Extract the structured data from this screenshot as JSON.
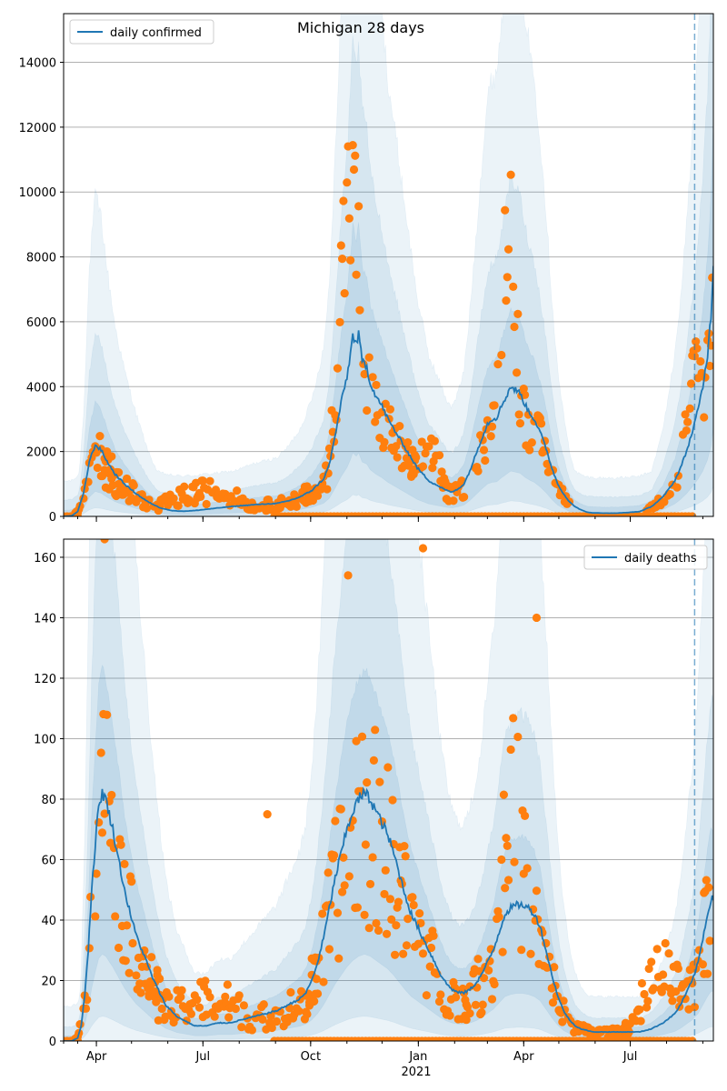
{
  "figure": {
    "title": "Michigan 28 days",
    "year_label": "2021",
    "x_ticks": [
      {
        "label": "Apr",
        "day": 16
      },
      {
        "label": "Jul",
        "day": 107
      },
      {
        "label": "Oct",
        "day": 199
      },
      {
        "label": "Jan",
        "day": 291
      },
      {
        "label": "Apr",
        "day": 381
      },
      {
        "label": "Jul",
        "day": 472
      }
    ],
    "x_range": [
      -12,
      543
    ],
    "forecast_day": 527
  },
  "colors": {
    "line": "#1f77b4",
    "points": "#ff7f0e",
    "band": "#1f77b4",
    "grid": "#b0b0b0"
  },
  "chart_data": [
    {
      "type": "line",
      "name": "confirmed",
      "legend": "daily confirmed",
      "legend_position": "top-left",
      "ylim": [
        0,
        15500
      ],
      "y_ticks": [
        0,
        2000,
        4000,
        6000,
        8000,
        10000,
        12000,
        14000
      ],
      "grid": true,
      "x_start": -12,
      "line_knots": [
        [
          -12,
          0
        ],
        [
          -5,
          20
        ],
        [
          0,
          150
        ],
        [
          5,
          700
        ],
        [
          10,
          1700
        ],
        [
          15,
          2200
        ],
        [
          20,
          2050
        ],
        [
          25,
          1700
        ],
        [
          32,
          1300
        ],
        [
          40,
          1000
        ],
        [
          50,
          700
        ],
        [
          60,
          450
        ],
        [
          70,
          270
        ],
        [
          80,
          180
        ],
        [
          90,
          160
        ],
        [
          100,
          180
        ],
        [
          110,
          220
        ],
        [
          120,
          260
        ],
        [
          130,
          300
        ],
        [
          140,
          330
        ],
        [
          150,
          360
        ],
        [
          160,
          380
        ],
        [
          170,
          400
        ],
        [
          180,
          480
        ],
        [
          190,
          600
        ],
        [
          200,
          800
        ],
        [
          210,
          1150
        ],
        [
          215,
          1600
        ],
        [
          220,
          2500
        ],
        [
          225,
          3500
        ],
        [
          230,
          4300
        ],
        [
          233,
          5000
        ],
        [
          235,
          5600
        ],
        [
          238,
          5300
        ],
        [
          240,
          5600
        ],
        [
          243,
          4800
        ],
        [
          247,
          4600
        ],
        [
          250,
          4100
        ],
        [
          255,
          3700
        ],
        [
          260,
          3400
        ],
        [
          265,
          3000
        ],
        [
          270,
          2700
        ],
        [
          275,
          2400
        ],
        [
          280,
          2100
        ],
        [
          285,
          1800
        ],
        [
          290,
          1500
        ],
        [
          295,
          1300
        ],
        [
          300,
          1100
        ],
        [
          305,
          1000
        ],
        [
          310,
          900
        ],
        [
          315,
          800
        ],
        [
          320,
          750
        ],
        [
          325,
          850
        ],
        [
          330,
          1000
        ],
        [
          335,
          1400
        ],
        [
          340,
          1900
        ],
        [
          345,
          2400
        ],
        [
          350,
          2850
        ],
        [
          354,
          3000
        ],
        [
          358,
          3050
        ],
        [
          362,
          3400
        ],
        [
          366,
          3700
        ],
        [
          370,
          4000
        ],
        [
          374,
          3900
        ],
        [
          378,
          3800
        ],
        [
          382,
          3450
        ],
        [
          386,
          3200
        ],
        [
          390,
          3000
        ],
        [
          395,
          2600
        ],
        [
          400,
          2100
        ],
        [
          405,
          1500
        ],
        [
          410,
          1000
        ],
        [
          415,
          700
        ],
        [
          420,
          450
        ],
        [
          425,
          300
        ],
        [
          430,
          200
        ],
        [
          435,
          130
        ],
        [
          440,
          110
        ],
        [
          450,
          100
        ],
        [
          460,
          100
        ],
        [
          470,
          120
        ],
        [
          480,
          150
        ],
        [
          490,
          300
        ],
        [
          500,
          600
        ],
        [
          510,
          1100
        ],
        [
          515,
          1500
        ],
        [
          520,
          2000
        ],
        [
          525,
          2600
        ],
        [
          530,
          3300
        ],
        [
          534,
          4000
        ],
        [
          538,
          5000
        ],
        [
          541,
          6200
        ],
        [
          543,
          7800
        ]
      ],
      "bands": [
        {
          "opacity": 0.09,
          "lo": 0.0,
          "hi": 4.5
        },
        {
          "opacity": 0.1,
          "lo": 0.12,
          "hi": 2.6
        },
        {
          "opacity": 0.11,
          "lo": 0.35,
          "hi": 1.6
        }
      ],
      "observed": [
        {
          "center": 15,
          "width": 9,
          "peak": 1900,
          "start": -3,
          "end": 36,
          "noise": 0.35
        },
        {
          "center": 28,
          "width": 18,
          "peak": 1000,
          "start": 20,
          "end": 70,
          "noise": 0.45
        },
        {
          "center": 110,
          "width": 45,
          "peak": 750,
          "start": 70,
          "end": 200,
          "noise": 0.5
        },
        {
          "center": 233,
          "width": 14,
          "peak": 9500,
          "start": 196,
          "end": 290,
          "noise": 0.35
        },
        {
          "center": 300,
          "width": 14,
          "peak": 2200,
          "start": 280,
          "end": 330,
          "noise": 0.35
        },
        {
          "center": 368,
          "width": 10,
          "peak": 9800,
          "start": 340,
          "end": 420,
          "noise": 0.3
        },
        {
          "center": 530,
          "width": 15,
          "peak": 4400,
          "start": 485,
          "end": 543,
          "noise": 0.3
        }
      ],
      "zero_ranges": [
        [
          -12,
          2
        ],
        [
          168,
          527
        ]
      ]
    },
    {
      "type": "line",
      "name": "deaths",
      "legend": "daily deaths",
      "legend_position": "top-right",
      "ylim": [
        0,
        166
      ],
      "y_ticks": [
        0,
        20,
        40,
        60,
        80,
        100,
        120,
        140,
        160
      ],
      "grid": true,
      "x_start": -12,
      "line_knots": [
        [
          -12,
          0
        ],
        [
          -5,
          0
        ],
        [
          0,
          1
        ],
        [
          3,
          5
        ],
        [
          6,
          15
        ],
        [
          9,
          30
        ],
        [
          12,
          50
        ],
        [
          15,
          65
        ],
        [
          18,
          78
        ],
        [
          21,
          82
        ],
        [
          24,
          80
        ],
        [
          27,
          75
        ],
        [
          30,
          70
        ],
        [
          33,
          64
        ],
        [
          36,
          58
        ],
        [
          40,
          50
        ],
        [
          45,
          42
        ],
        [
          50,
          35
        ],
        [
          55,
          30
        ],
        [
          60,
          25
        ],
        [
          65,
          20
        ],
        [
          70,
          16
        ],
        [
          75,
          12
        ],
        [
          80,
          10
        ],
        [
          85,
          8
        ],
        [
          90,
          7
        ],
        [
          95,
          6
        ],
        [
          100,
          5
        ],
        [
          110,
          5
        ],
        [
          120,
          6
        ],
        [
          130,
          6
        ],
        [
          140,
          7
        ],
        [
          150,
          8
        ],
        [
          160,
          9
        ],
        [
          170,
          10
        ],
        [
          180,
          12
        ],
        [
          190,
          14
        ],
        [
          195,
          16
        ],
        [
          200,
          20
        ],
        [
          205,
          26
        ],
        [
          210,
          34
        ],
        [
          215,
          44
        ],
        [
          220,
          54
        ],
        [
          225,
          62
        ],
        [
          230,
          70
        ],
        [
          235,
          76
        ],
        [
          240,
          80
        ],
        [
          245,
          82
        ],
        [
          250,
          80
        ],
        [
          255,
          76
        ],
        [
          260,
          72
        ],
        [
          265,
          68
        ],
        [
          270,
          62
        ],
        [
          275,
          55
        ],
        [
          280,
          48
        ],
        [
          285,
          42
        ],
        [
          290,
          38
        ],
        [
          295,
          34
        ],
        [
          300,
          30
        ],
        [
          305,
          26
        ],
        [
          310,
          22
        ],
        [
          315,
          19
        ],
        [
          320,
          17
        ],
        [
          325,
          16
        ],
        [
          330,
          16
        ],
        [
          335,
          17
        ],
        [
          340,
          19
        ],
        [
          345,
          22
        ],
        [
          350,
          26
        ],
        [
          355,
          30
        ],
        [
          360,
          36
        ],
        [
          365,
          42
        ],
        [
          370,
          44
        ],
        [
          375,
          45
        ],
        [
          380,
          45
        ],
        [
          385,
          44
        ],
        [
          390,
          42
        ],
        [
          395,
          38
        ],
        [
          400,
          30
        ],
        [
          405,
          22
        ],
        [
          410,
          15
        ],
        [
          415,
          10
        ],
        [
          420,
          7
        ],
        [
          425,
          5
        ],
        [
          430,
          4
        ],
        [
          440,
          3
        ],
        [
          450,
          3
        ],
        [
          460,
          3
        ],
        [
          470,
          3
        ],
        [
          480,
          3
        ],
        [
          490,
          4
        ],
        [
          500,
          6
        ],
        [
          510,
          9
        ],
        [
          515,
          12
        ],
        [
          520,
          16
        ],
        [
          525,
          20
        ],
        [
          530,
          26
        ],
        [
          534,
          34
        ],
        [
          538,
          42
        ],
        [
          541,
          47
        ],
        [
          543,
          47
        ]
      ],
      "bands": [
        {
          "opacity": 0.09,
          "lo": 0.0,
          "hi": 4.5
        },
        {
          "opacity": 0.1,
          "lo": 0.1,
          "hi": 2.4
        },
        {
          "opacity": 0.11,
          "lo": 0.35,
          "hi": 1.5
        }
      ],
      "observed": [
        {
          "center": 22,
          "width": 11,
          "peak": 105,
          "start": -3,
          "end": 70,
          "noise": 0.45
        },
        {
          "center": 110,
          "width": 50,
          "peak": 14,
          "start": 60,
          "end": 205,
          "noise": 0.55
        },
        {
          "center": 240,
          "width": 22,
          "peak": 78,
          "start": 195,
          "end": 335,
          "noise": 0.5
        },
        {
          "center": 372,
          "width": 18,
          "peak": 70,
          "start": 330,
          "end": 470,
          "noise": 0.55
        },
        {
          "center": 500,
          "width": 25,
          "peak": 22,
          "start": 460,
          "end": 540,
          "noise": 0.5
        }
      ],
      "outliers": [
        {
          "x": 162,
          "y": 75
        },
        {
          "x": 295,
          "y": 163
        },
        {
          "x": 23,
          "y": 166
        },
        {
          "x": 231,
          "y": 154
        },
        {
          "x": 392,
          "y": 140
        },
        {
          "x": 535,
          "y": 49
        }
      ],
      "zero_ranges": [
        [
          -12,
          2
        ],
        [
          168,
          527
        ]
      ]
    }
  ]
}
